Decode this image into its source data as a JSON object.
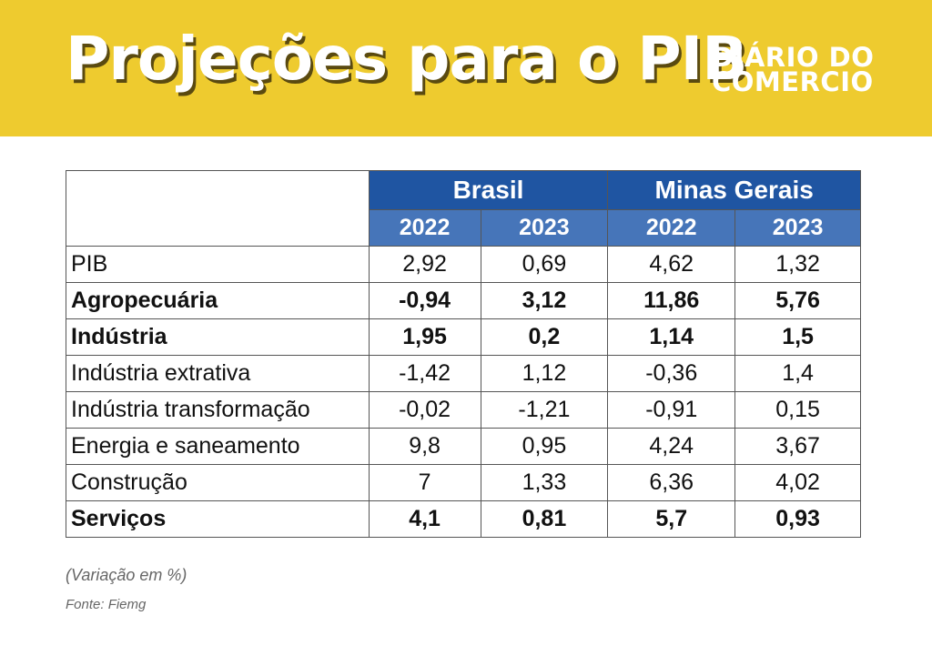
{
  "header": {
    "title": "Projeções para o PIB",
    "logo_line1": "DIÁRIO DO",
    "logo_line2": "COMERCIO"
  },
  "chart_data": {
    "type": "table",
    "title": "Projeções para o PIB",
    "groups": [
      "Brasil",
      "Minas Gerais"
    ],
    "years": [
      "2022",
      "2023",
      "2022",
      "2023"
    ],
    "rows": [
      {
        "label": "PIB",
        "bold": false,
        "values": [
          "2,92",
          "0,69",
          "4,62",
          "1,32"
        ]
      },
      {
        "label": "Agropecuária",
        "bold": true,
        "values": [
          "-0,94",
          "3,12",
          "11,86",
          "5,76"
        ]
      },
      {
        "label": "Indústria",
        "bold": true,
        "values": [
          "1,95",
          "0,2",
          "1,14",
          "1,5"
        ]
      },
      {
        "label": "Indústria extrativa",
        "bold": false,
        "values": [
          "-1,42",
          "1,12",
          "-0,36",
          "1,4"
        ]
      },
      {
        "label": "Indústria transformação",
        "bold": false,
        "values": [
          "-0,02",
          "-1,21",
          "-0,91",
          "0,15"
        ]
      },
      {
        "label": "Energia e saneamento",
        "bold": false,
        "values": [
          "9,8",
          "0,95",
          "4,24",
          "3,67"
        ]
      },
      {
        "label": "Construção",
        "bold": false,
        "values": [
          "7",
          "1,33",
          "6,36",
          "4,02"
        ]
      },
      {
        "label": "Serviços",
        "bold": true,
        "values": [
          "4,1",
          "0,81",
          "5,7",
          "0,93"
        ]
      }
    ]
  },
  "footer": {
    "note": "(Variação em %)",
    "source": "Fonte: Fiemg"
  },
  "colors": {
    "banner": "#eecb2f",
    "header_dark": "#1f55a2",
    "header_light": "#4675b9"
  }
}
